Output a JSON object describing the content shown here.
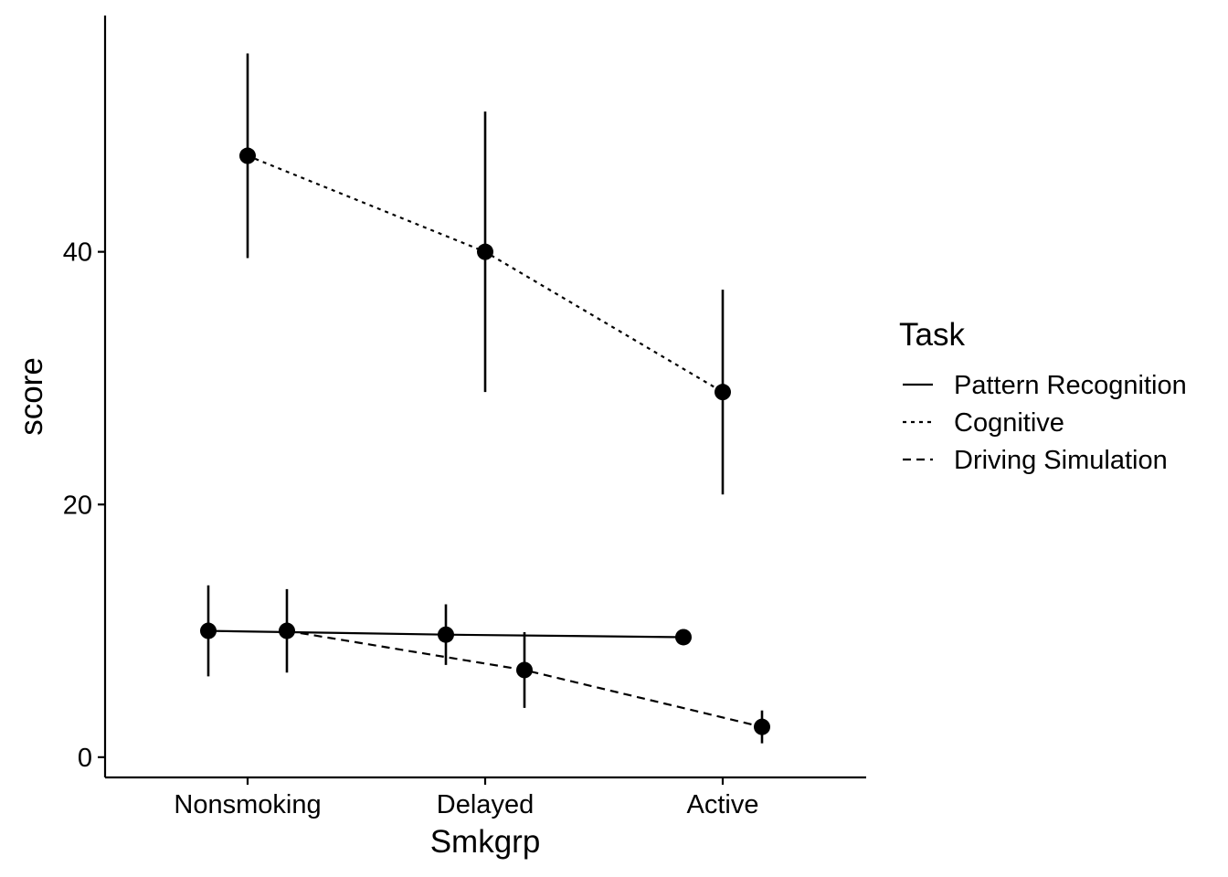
{
  "chart_data": {
    "type": "line",
    "xlabel": "Smkgrp",
    "ylabel": "score",
    "categories": [
      "Nonsmoking",
      "Delayed",
      "Active"
    ],
    "y_ticks": [
      0,
      20,
      40
    ],
    "ylim": [
      -1.6,
      58.7
    ],
    "grid": false,
    "legend": {
      "title": "Task",
      "position": "right"
    },
    "series": [
      {
        "name": "Pattern Recognition",
        "linetype": "solid",
        "values": [
          10.0,
          9.7,
          9.5
        ],
        "lower": [
          6.4,
          7.3,
          8.9
        ],
        "upper": [
          13.6,
          12.1,
          10.1
        ]
      },
      {
        "name": "Cognitive",
        "linetype": "dotted",
        "values": [
          47.6,
          40.0,
          28.9
        ],
        "lower": [
          39.5,
          28.9,
          20.8
        ],
        "upper": [
          55.7,
          51.1,
          37.0
        ]
      },
      {
        "name": "Driving Simulation",
        "linetype": "dashed",
        "values": [
          10.0,
          6.9,
          2.4
        ],
        "lower": [
          6.7,
          3.9,
          1.1
        ],
        "upper": [
          13.3,
          9.9,
          3.7
        ]
      }
    ]
  }
}
